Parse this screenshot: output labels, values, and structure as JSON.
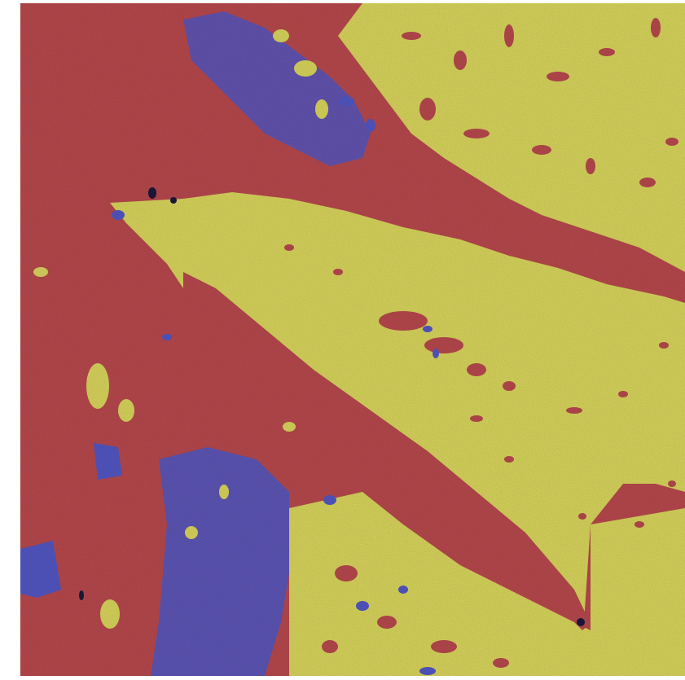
{
  "image": {
    "kind": "phase-segmentation-micrograph",
    "phase_colors": {
      "red_phase": "#b5484c",
      "yellow_phase": "#d6d35c",
      "blue_phase": "#5256c0",
      "defect": "#1c1a3a"
    },
    "icons": [
      "texture-noise",
      "phase-regions"
    ]
  }
}
